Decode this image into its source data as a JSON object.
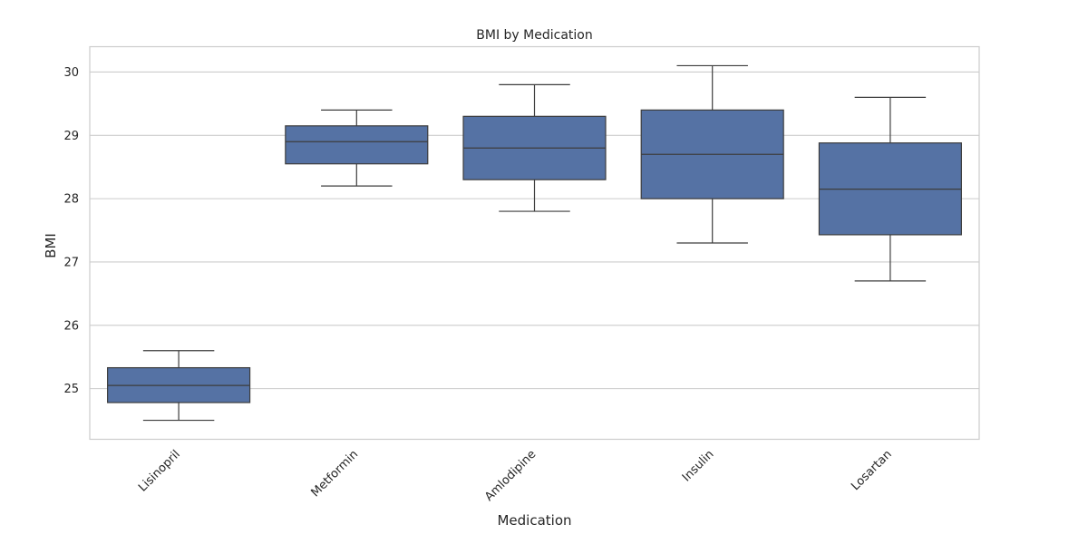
{
  "chart_data": {
    "type": "box",
    "title": "BMI by Medication",
    "xlabel": "Medication",
    "ylabel": "BMI",
    "ylim": [
      24.2,
      30.4
    ],
    "yticks": [
      25,
      26,
      27,
      28,
      29,
      30
    ],
    "grid": true,
    "categories": [
      "Lisinopril",
      "Metformin",
      "Amlodipine",
      "Insulin",
      "Losartan"
    ],
    "boxes": [
      {
        "category": "Lisinopril",
        "whisker_low": 24.5,
        "q1": 24.78,
        "median": 25.05,
        "q3": 25.33,
        "whisker_high": 25.6
      },
      {
        "category": "Metformin",
        "whisker_low": 28.2,
        "q1": 28.55,
        "median": 28.9,
        "q3": 29.15,
        "whisker_high": 29.4
      },
      {
        "category": "Amlodipine",
        "whisker_low": 27.8,
        "q1": 28.3,
        "median": 28.8,
        "q3": 29.3,
        "whisker_high": 29.8
      },
      {
        "category": "Insulin",
        "whisker_low": 27.3,
        "q1": 28.0,
        "median": 28.7,
        "q3": 29.4,
        "whisker_high": 30.1
      },
      {
        "category": "Losartan",
        "whisker_low": 26.7,
        "q1": 27.43,
        "median": 28.15,
        "q3": 28.88,
        "whisker_high": 29.6
      }
    ],
    "colors": {
      "box_fill": "#5572a4",
      "box_line": "#3d3d3d",
      "grid": "#cccccc",
      "frame": "#cccccc"
    }
  }
}
